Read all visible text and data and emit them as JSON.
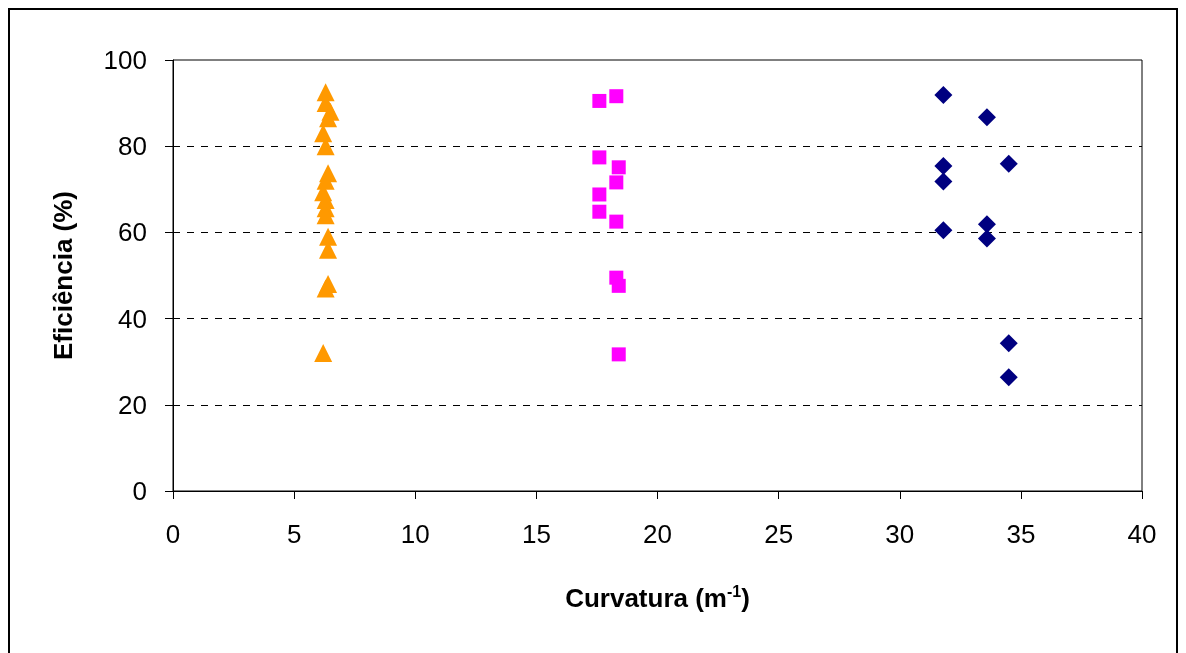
{
  "chart_data": {
    "type": "scatter",
    "xlabel": "Curvatura (m$^{-1}$)",
    "ylabel": "Eficiência (%)",
    "xlim": [
      0,
      40
    ],
    "xticks": [
      0,
      5,
      10,
      15,
      20,
      25,
      30,
      35,
      40
    ],
    "ylim": [
      0,
      100
    ],
    "yticks": [
      0,
      20,
      40,
      60,
      80,
      100
    ],
    "grid": "y",
    "series": [
      {
        "color": "#ff9900",
        "marker": "triangle",
        "x": [
          6.3,
          6.3,
          6.5,
          6.4,
          6.2,
          6.3,
          6.4,
          6.3,
          6.2,
          6.3,
          6.3,
          6.3,
          6.4,
          6.4,
          6.4,
          6.3,
          6.2
        ],
        "values": [
          92.5,
          90,
          88,
          86.5,
          83,
          80,
          73.7,
          72,
          69.3,
          67.5,
          65.6,
          64,
          59,
          56,
          48,
          47,
          32
        ]
      },
      {
        "color": "#ff00ff",
        "marker": "square",
        "x": [
          17.6,
          18.3,
          17.6,
          18.4,
          18.3,
          17.6,
          17.6,
          18.3,
          18.3,
          18.4,
          18.4
        ],
        "values": [
          90.5,
          91.6,
          77.4,
          75.1,
          71.6,
          68.8,
          64.8,
          62.5,
          49.5,
          47.6,
          31.7
        ]
      },
      {
        "color": "#000080",
        "marker": "diamond",
        "x": [
          31.8,
          33.6,
          31.8,
          34.5,
          31.8,
          31.8,
          33.6,
          33.6,
          34.5,
          34.5
        ],
        "values": [
          91.9,
          86.7,
          75.4,
          75.9,
          71.8,
          60.5,
          61.9,
          58.6,
          34.3,
          26.4
        ]
      }
    ]
  }
}
